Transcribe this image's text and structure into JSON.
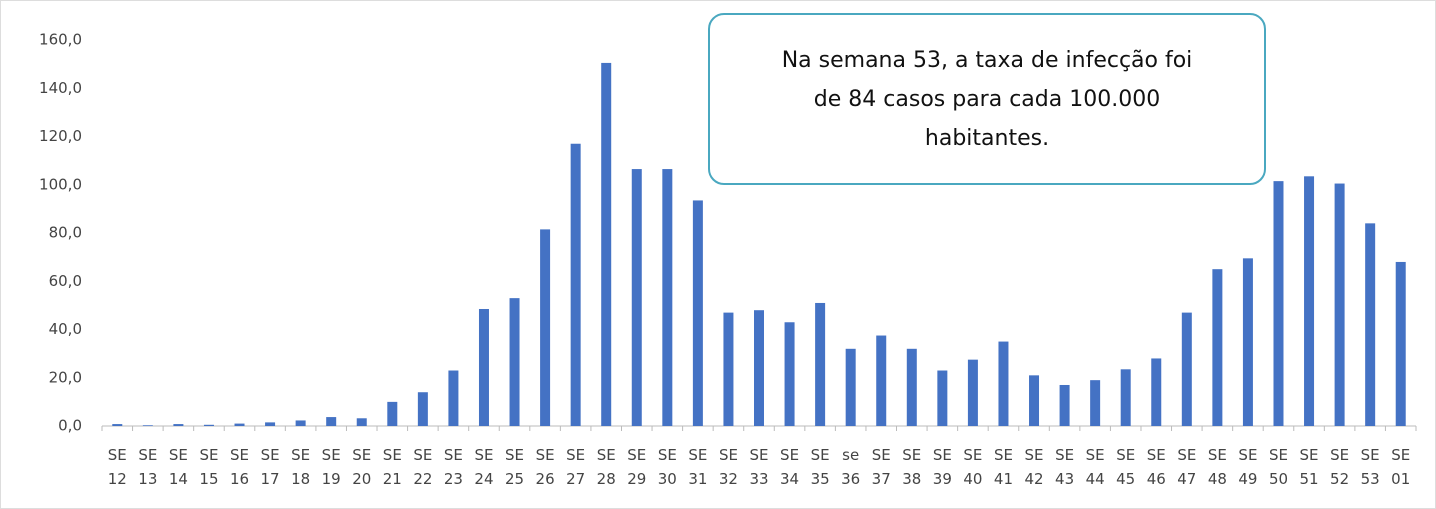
{
  "chart_data": {
    "type": "bar",
    "annotation": "Na semana 53, a taxa de infecção foi de 84 casos para cada 100.000 habitantes.",
    "categories": [
      "SE 12",
      "SE 13",
      "SE 14",
      "SE 15",
      "SE 16",
      "SE 17",
      "SE 18",
      "SE 19",
      "SE 20",
      "SE 21",
      "SE 22",
      "SE 23",
      "SE 24",
      "SE 25",
      "SE 26",
      "SE 27",
      "SE 28",
      "SE 29",
      "SE 30",
      "SE 31",
      "SE 32",
      "SE 33",
      "SE 34",
      "SE 35",
      "se 36",
      "SE 37",
      "SE 38",
      "SE 39",
      "SE 40",
      "SE 41",
      "SE 42",
      "SE 43",
      "SE 44",
      "SE 45",
      "SE 46",
      "SE 47",
      "SE 48",
      "SE 49",
      "SE 50",
      "SE 51",
      "SE 52",
      "SE 53",
      "SE 01"
    ],
    "values": [
      0.8,
      0.3,
      0.8,
      0.5,
      1.0,
      1.5,
      2.3,
      3.7,
      3.2,
      10,
      14,
      23,
      48.5,
      53,
      81.5,
      117,
      150.5,
      106.5,
      106.5,
      93.5,
      47,
      48,
      43,
      51,
      32,
      37.5,
      32,
      23,
      27.5,
      35,
      21,
      17,
      19,
      23.5,
      28,
      47,
      65,
      69.5,
      101.5,
      103.5,
      100.5,
      84,
      68
    ],
    "color": "#4472c4",
    "ylim": [
      0,
      160
    ],
    "yticks": [
      {
        "value": 0,
        "label": "0,0"
      },
      {
        "value": 20,
        "label": "20,0"
      },
      {
        "value": 40,
        "label": "40,0"
      },
      {
        "value": 60,
        "label": "60,0"
      },
      {
        "value": 80,
        "label": "80,0"
      },
      {
        "value": 100,
        "label": "100,0"
      },
      {
        "value": 120,
        "label": "120,0"
      },
      {
        "value": 140,
        "label": "140,0"
      },
      {
        "value": 160,
        "label": "160,0"
      }
    ],
    "grid": false
  }
}
